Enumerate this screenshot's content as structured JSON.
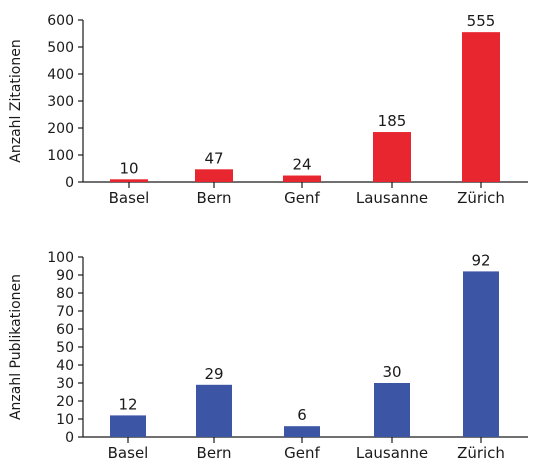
{
  "chart_data": [
    {
      "type": "bar",
      "categories": [
        "Basel",
        "Bern",
        "Genf",
        "Lausanne",
        "Zürich"
      ],
      "values": [
        10,
        47,
        24,
        185,
        555
      ],
      "data_labels": [
        "10",
        "47",
        "24",
        "185",
        "555"
      ],
      "ylabel": "Anzahl Zitationen",
      "ylim": [
        0,
        600
      ],
      "yticks": [
        0,
        100,
        200,
        300,
        400,
        500,
        600
      ],
      "ytick_labels": [
        "0",
        "100",
        "200",
        "300",
        "400",
        "500",
        "600"
      ],
      "bar_color": "#e8262f",
      "grid": false,
      "legend": "none"
    },
    {
      "type": "bar",
      "categories": [
        "Basel",
        "Bern",
        "Genf",
        "Lausanne",
        "Zürich"
      ],
      "values": [
        12,
        29,
        6,
        30,
        92
      ],
      "data_labels": [
        "12",
        "29",
        "6",
        "30",
        "92"
      ],
      "ylabel": "Anzahl Publikationen",
      "ylim": [
        0,
        100
      ],
      "yticks": [
        0,
        10,
        20,
        30,
        40,
        50,
        60,
        70,
        80,
        90,
        100
      ],
      "ytick_labels": [
        "0",
        "10",
        "20",
        "30",
        "40",
        "50",
        "60",
        "70",
        "80",
        "90",
        "100"
      ],
      "bar_color": "#3c55a5",
      "grid": false,
      "legend": "none"
    }
  ],
  "colors": {
    "axis": "#1a1a1a",
    "text": "#1a1a1a"
  }
}
